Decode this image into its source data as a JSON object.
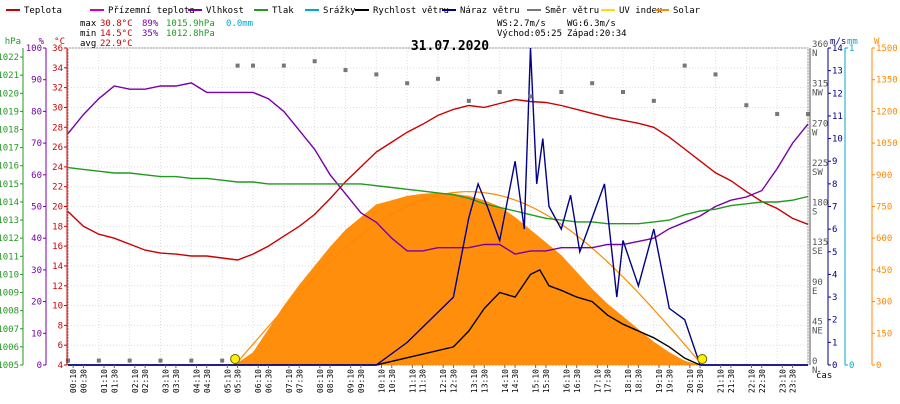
{
  "legend": [
    {
      "key": "temp",
      "label": "Teplota",
      "color": "#cc0000"
    },
    {
      "key": "feels",
      "label": "Přízemní teplota",
      "color": "#cc00cc"
    },
    {
      "key": "hum",
      "label": "Vlhkost",
      "color": "#7700aa"
    },
    {
      "key": "press",
      "label": "Tlak",
      "color": "#229922"
    },
    {
      "key": "rain",
      "label": "Srážky",
      "color": "#00aacc"
    },
    {
      "key": "wind",
      "label": "Rychlost větru",
      "color": "#000000"
    },
    {
      "key": "gust",
      "label": "Náraz větru",
      "color": "#000088"
    },
    {
      "key": "dir",
      "label": "Směr větru",
      "color": "#777777"
    },
    {
      "key": "uv",
      "label": "UV index",
      "color": "#ffdd00"
    },
    {
      "key": "solar",
      "label": "Solar",
      "color": "#ff8800"
    }
  ],
  "stats": {
    "max": {
      "label": "max",
      "temp": "30.8°C",
      "hum": "89%",
      "press": "1015.9hPa",
      "rain": "0.0mm"
    },
    "min": {
      "label": "min",
      "temp": "14.5°C",
      "hum": "35%",
      "press": "1012.8hPa"
    },
    "avg": {
      "label": "avg",
      "temp": "22.9°C"
    }
  },
  "info": {
    "ws": "WS:2.7m/s",
    "wg": "WG:6.3m/s",
    "sunrise": "Východ:05:25",
    "sunset": "Západ:20:34"
  },
  "title": "31.07.2020",
  "x_axis_label": "čas",
  "axis_units": {
    "hpa": "hPa",
    "pct": "%",
    "degc": "°C",
    "ms": "m/s",
    "mm": "mm",
    "w": "W"
  },
  "chart_data": {
    "type": "line",
    "title": "31.07.2020",
    "xlabel": "čas",
    "x_ticks": [
      "00:10",
      "00:30",
      "01:10",
      "01:30",
      "02:10",
      "02:30",
      "03:10",
      "03:30",
      "04:10",
      "04:30",
      "05:10",
      "05:30",
      "06:10",
      "06:30",
      "07:10",
      "07:30",
      "08:10",
      "08:30",
      "09:10",
      "09:30",
      "10:10",
      "10:30",
      "11:10",
      "11:30",
      "12:10",
      "12:30",
      "13:10",
      "13:30",
      "14:10",
      "14:30",
      "15:10",
      "15:30",
      "16:10",
      "16:30",
      "17:10",
      "17:30",
      "18:10",
      "18:30",
      "19:10",
      "19:30",
      "20:10",
      "20:30",
      "21:10",
      "21:30",
      "22:10",
      "22:30",
      "23:10",
      "23:30"
    ],
    "axes": {
      "pressure_hpa": {
        "ticks": [
          "1005",
          "1006",
          "1007",
          "1008",
          "1009",
          "1010",
          "1011",
          "1012",
          "1013",
          "1014",
          "1015",
          "1016",
          "1017",
          "1018",
          "1019",
          "1020",
          "1021",
          "1022"
        ],
        "range": [
          1005,
          1022.5
        ]
      },
      "humidity_pct": {
        "ticks": [
          "0",
          "10",
          "20",
          "30",
          "40",
          "50",
          "60",
          "70",
          "80",
          "90",
          "100"
        ],
        "range": [
          0,
          100
        ]
      },
      "temperature_c": {
        "ticks": [
          "4",
          "6",
          "8",
          "10",
          "12",
          "14",
          "16",
          "18",
          "20",
          "22",
          "24",
          "26",
          "28",
          "30",
          "32",
          "34",
          "36"
        ],
        "range": [
          4,
          36
        ]
      },
      "wind_dir": {
        "ticks": [
          {
            "v": "0",
            "d": "N"
          },
          {
            "v": "45",
            "d": "NE"
          },
          {
            "v": "90",
            "d": "E"
          },
          {
            "v": "135",
            "d": "SE"
          },
          {
            "v": "180",
            "d": "S"
          },
          {
            "v": "225",
            "d": "SW"
          },
          {
            "v": "270",
            "d": "W"
          },
          {
            "v": "315",
            "d": "NW"
          },
          {
            "v": "360",
            "d": "N"
          }
        ],
        "range": [
          0,
          360
        ]
      },
      "wind_ms": {
        "ticks": [
          "0",
          "1",
          "2",
          "3",
          "4",
          "5",
          "6",
          "7",
          "8",
          "9",
          "10",
          "11",
          "12",
          "13",
          "14"
        ],
        "range": [
          0,
          14
        ]
      },
      "rain_mm": {
        "ticks": [
          "0",
          "1"
        ],
        "range": [
          0,
          1
        ]
      },
      "solar_w": {
        "ticks": [
          "0",
          "150",
          "300",
          "450",
          "600",
          "750",
          "900",
          "1050",
          "1200",
          "1350",
          "1500"
        ],
        "range": [
          0,
          1500
        ]
      }
    },
    "series": [
      {
        "name": "Teplota",
        "unit": "°C",
        "color": "#cc0000",
        "x": [
          0,
          0.5,
          1,
          1.5,
          2,
          2.5,
          3,
          3.5,
          4,
          4.5,
          5,
          5.5,
          6,
          6.5,
          7,
          7.5,
          8,
          8.5,
          9,
          9.5,
          10,
          10.5,
          11,
          11.5,
          12,
          12.5,
          13,
          13.5,
          14,
          14.5,
          15,
          15.5,
          16,
          16.5,
          17,
          17.5,
          18,
          18.5,
          19,
          19.5,
          20,
          20.5,
          21,
          21.5,
          22,
          22.5,
          23,
          23.5,
          24
        ],
        "y": [
          19.5,
          18,
          17.2,
          16.8,
          16.2,
          15.6,
          15.3,
          15.2,
          15.0,
          15.0,
          14.8,
          14.6,
          15.2,
          16.0,
          17.0,
          18.0,
          19.2,
          20.8,
          22.5,
          24.0,
          25.5,
          26.5,
          27.5,
          28.3,
          29.2,
          29.8,
          30.2,
          30.0,
          30.4,
          30.8,
          30.6,
          30.5,
          30.2,
          29.8,
          29.4,
          29.0,
          28.7,
          28.4,
          28.0,
          27.0,
          25.8,
          24.6,
          23.4,
          22.6,
          21.5,
          20.5,
          19.8,
          18.8,
          18.2
        ]
      },
      {
        "name": "Vlhkost",
        "unit": "%",
        "color": "#7700aa",
        "x": [
          0,
          0.5,
          1,
          1.5,
          2,
          2.5,
          3,
          3.5,
          4,
          4.5,
          5,
          5.5,
          6,
          6.5,
          7,
          7.5,
          8,
          8.5,
          9,
          9.5,
          10,
          10.5,
          11,
          11.5,
          12,
          12.5,
          13,
          13.5,
          14,
          14.5,
          15,
          15.5,
          16,
          16.5,
          17,
          17.5,
          18,
          18.5,
          19,
          19.5,
          20,
          20.5,
          21,
          21.5,
          22,
          22.5,
          23,
          23.5,
          24
        ],
        "y": [
          73,
          79,
          84,
          88,
          87,
          87,
          88,
          88,
          89,
          86,
          86,
          86,
          86,
          84,
          80,
          74,
          68,
          60,
          54,
          48,
          45,
          40,
          36,
          36,
          37,
          37,
          37,
          38,
          38,
          35,
          36,
          36,
          37,
          37,
          37,
          38,
          38,
          39,
          40,
          43,
          45,
          47,
          50,
          52,
          53,
          55,
          62,
          70,
          76
        ]
      },
      {
        "name": "Tlak",
        "unit": "hPa",
        "color": "#229922",
        "x": [
          0,
          0.5,
          1,
          1.5,
          2,
          2.5,
          3,
          3.5,
          4,
          4.5,
          5,
          5.5,
          6,
          6.5,
          7,
          7.5,
          8,
          8.5,
          9,
          9.5,
          10,
          10.5,
          11,
          11.5,
          12,
          12.5,
          13,
          13.5,
          14,
          14.5,
          15,
          15.5,
          16,
          16.5,
          17,
          17.5,
          18,
          18.5,
          19,
          19.5,
          20,
          20.5,
          21,
          21.5,
          22,
          22.5,
          23,
          23.5,
          24
        ],
        "y": [
          1015.9,
          1015.8,
          1015.7,
          1015.6,
          1015.6,
          1015.5,
          1015.4,
          1015.4,
          1015.3,
          1015.3,
          1015.2,
          1015.1,
          1015.1,
          1015.0,
          1015.0,
          1015.0,
          1015.0,
          1015.0,
          1015.0,
          1015.0,
          1014.9,
          1014.8,
          1014.7,
          1014.6,
          1014.5,
          1014.4,
          1014.2,
          1013.9,
          1013.7,
          1013.5,
          1013.3,
          1013.1,
          1013.0,
          1012.9,
          1012.9,
          1012.8,
          1012.8,
          1012.8,
          1012.9,
          1013.0,
          1013.3,
          1013.5,
          1013.6,
          1013.8,
          1013.9,
          1014.0,
          1014.0,
          1014.1,
          1014.3
        ]
      },
      {
        "name": "Rychlost větru",
        "unit": "m/s",
        "color": "#000000",
        "x": [
          0,
          10,
          12.5,
          13,
          13.5,
          14,
          14.5,
          15,
          15.3,
          15.6,
          16,
          16.5,
          17,
          17.5,
          18,
          18.5,
          19,
          19.5,
          20,
          20.5,
          24
        ],
        "y": [
          0,
          0,
          0.8,
          1.5,
          2.5,
          3.2,
          3.0,
          4.0,
          4.2,
          3.5,
          3.3,
          3.0,
          2.8,
          2.2,
          1.8,
          1.5,
          1.2,
          0.8,
          0.3,
          0,
          0
        ]
      },
      {
        "name": "Náraz větru",
        "unit": "m/s",
        "color": "#000088",
        "x": [
          0,
          10,
          11,
          12.5,
          13,
          13.3,
          13.6,
          14,
          14.5,
          14.8,
          15,
          15.2,
          15.4,
          15.6,
          16,
          16.3,
          16.6,
          17,
          17.4,
          17.8,
          18,
          18.5,
          19,
          19.5,
          20,
          20.5,
          24
        ],
        "y": [
          0,
          0,
          1.0,
          3.0,
          6.5,
          8.0,
          7.0,
          5.5,
          9.0,
          6.0,
          14.0,
          8.0,
          10.0,
          7.0,
          6.0,
          7.5,
          5.0,
          6.5,
          8.0,
          3.0,
          5.5,
          3.5,
          6.0,
          2.5,
          2.0,
          0,
          0
        ]
      },
      {
        "name": "Solar",
        "unit": "W",
        "color": "#ff8800",
        "x": [
          0,
          5.4,
          6.0,
          6.5,
          7.0,
          7.5,
          8.0,
          8.5,
          9.0,
          9.5,
          10,
          10.5,
          11,
          11.5,
          12,
          12.5,
          13,
          13.5,
          14,
          14.5,
          15,
          15.5,
          16,
          16.5,
          17,
          17.5,
          18,
          18.5,
          19,
          19.5,
          20,
          20.5,
          24
        ],
        "y": [
          0,
          0,
          60,
          170,
          280,
          380,
          470,
          560,
          640,
          700,
          760,
          780,
          800,
          810,
          815,
          810,
          800,
          780,
          750,
          700,
          640,
          580,
          520,
          440,
          360,
          290,
          230,
          170,
          110,
          60,
          20,
          0,
          0
        ]
      },
      {
        "name": "Směr větru",
        "unit": "°",
        "color": "#777777",
        "x": [
          0,
          1,
          2,
          3,
          4,
          5,
          5.5,
          6,
          7,
          8,
          9,
          10,
          11,
          12,
          13,
          14,
          15,
          16,
          17,
          18,
          19,
          20,
          21,
          22,
          23,
          24
        ],
        "y": [
          5,
          5,
          5,
          5,
          5,
          5,
          340,
          340,
          340,
          345,
          335,
          330,
          320,
          325,
          300,
          310,
          305,
          310,
          320,
          310,
          300,
          340,
          330,
          295,
          285,
          285
        ]
      }
    ]
  }
}
